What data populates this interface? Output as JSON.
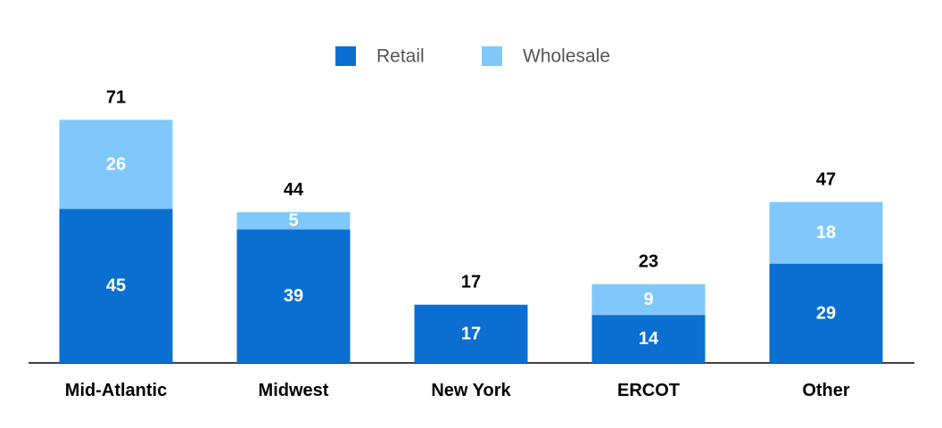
{
  "chart_data": {
    "type": "stacked_bar",
    "categories": [
      "Mid-Atlantic",
      "Midwest",
      "New York",
      "ERCOT",
      "Other"
    ],
    "series": [
      {
        "name": "Retail",
        "color": "#0a6fd1",
        "values": [
          45,
          39,
          17,
          14,
          29
        ]
      },
      {
        "name": "Wholesale",
        "color": "#80c8fb",
        "values": [
          26,
          5,
          null,
          9,
          18
        ]
      }
    ],
    "totals": [
      71,
      44,
      17,
      23,
      47
    ],
    "ylim": [
      0,
      75
    ],
    "legend": "top"
  }
}
